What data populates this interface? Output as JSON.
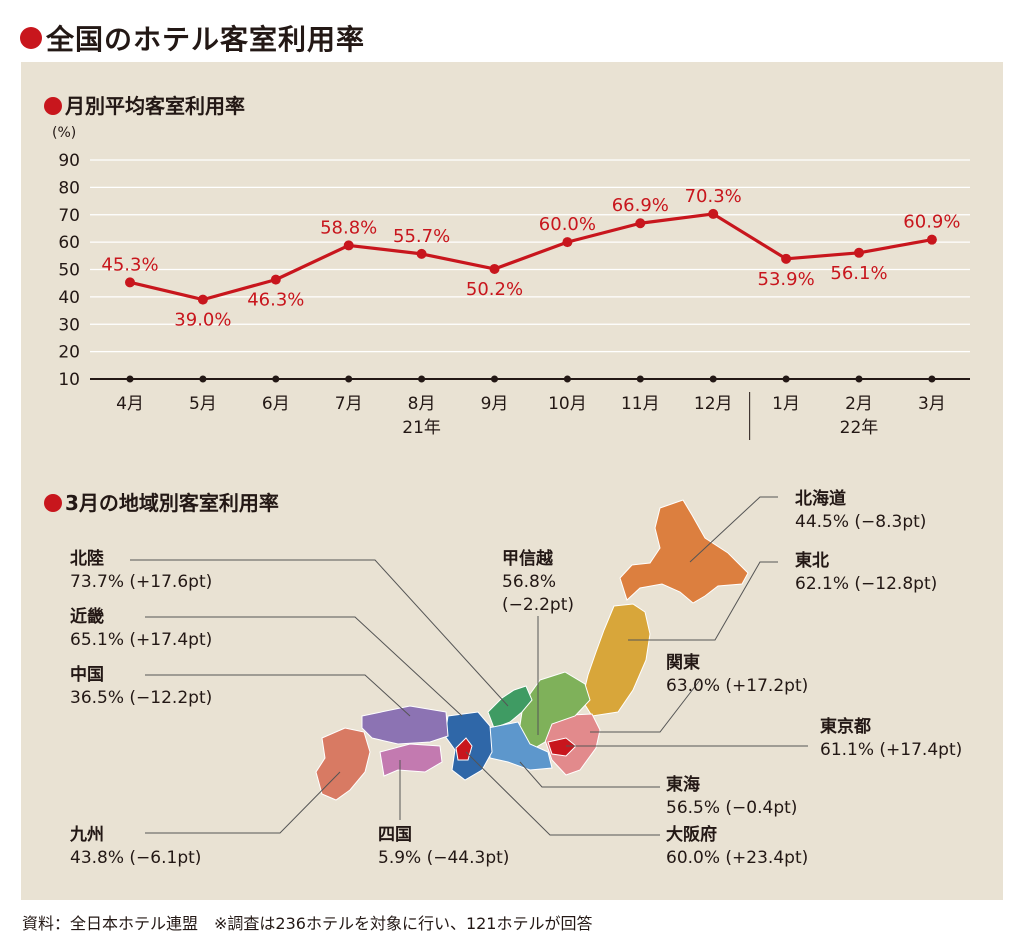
{
  "main_title": "全国のホテル客室利用率",
  "chart1": {
    "title": "月別平均客室利用率",
    "unit_label": "(%)",
    "year_labels": [
      {
        "label": "21年"
      },
      {
        "label": "22年"
      }
    ]
  },
  "chart2": {
    "title": "3月の地域別客室利用率"
  },
  "source": "資料：全日本ホテル連盟　※調査は236ホテルを対象に行い、121ホテルが回答",
  "colors": {
    "accent": "#c8161d",
    "panel": "#e9e2d3",
    "line": "#c8161d",
    "hokkaido": "#dc7f3f",
    "tohoku": "#d8a63a",
    "kanto": "#e28a8c",
    "tokyo": "#c8161d",
    "koshinetsu": "#7fb15a",
    "hokuriku": "#3f9b63",
    "tokai": "#5d97cc",
    "kinki": "#2f67a8",
    "osaka": "#c8161d",
    "chugoku": "#8c73b3",
    "shikoku": "#c37ab0",
    "kyushu": "#d87a63"
  },
  "chart_data": [
    {
      "type": "line",
      "title": "月別平均客室利用率",
      "ylabel": "(%)",
      "xlabel": "",
      "ylim": [
        10,
        90
      ],
      "yticks": [
        10,
        20,
        30,
        40,
        50,
        60,
        70,
        80,
        90
      ],
      "grid": true,
      "categories": [
        "4月",
        "5月",
        "6月",
        "7月",
        "8月",
        "9月",
        "10月",
        "11月",
        "12月",
        "1月",
        "2月",
        "3月"
      ],
      "values": [
        45.3,
        39.0,
        46.3,
        58.8,
        55.7,
        50.2,
        60.0,
        66.9,
        70.3,
        53.9,
        56.1,
        60.9
      ],
      "data_labels": [
        "45.3%",
        "39.0%",
        "46.3%",
        "58.8%",
        "55.7%",
        "50.2%",
        "60.0%",
        "66.9%",
        "70.3%",
        "53.9%",
        "56.1%",
        "60.9%"
      ],
      "label_position": [
        "above",
        "below",
        "below",
        "above",
        "above",
        "below",
        "above",
        "above",
        "above",
        "below",
        "below",
        "above"
      ],
      "year_groups": [
        {
          "label": "21年",
          "from": 0,
          "to": 8
        },
        {
          "label": "22年",
          "from": 9,
          "to": 11
        }
      ]
    },
    {
      "type": "table",
      "title": "3月の地域別客室利用率",
      "rows": [
        {
          "region": "北海道",
          "value": "44.5%",
          "change": "(−8.3pt)"
        },
        {
          "region": "東北",
          "value": "62.1%",
          "change": "(−12.8pt)"
        },
        {
          "region": "関東",
          "value": "63.0%",
          "change": "(+17.2pt)"
        },
        {
          "region": "東京都",
          "value": "61.1%",
          "change": "(+17.4pt)"
        },
        {
          "region": "東海",
          "value": "56.5%",
          "change": "(−0.4pt)"
        },
        {
          "region": "大阪府",
          "value": "60.0%",
          "change": "(+23.4pt)"
        },
        {
          "region": "四国",
          "value": "5.9%",
          "change": "(−44.3pt)"
        },
        {
          "region": "九州",
          "value": "43.8%",
          "change": "(−6.1pt)"
        },
        {
          "region": "中国",
          "value": "36.5%",
          "change": "(−12.2pt)"
        },
        {
          "region": "近畿",
          "value": "65.1%",
          "change": "(+17.4pt)"
        },
        {
          "region": "北陸",
          "value": "73.7%",
          "change": "(+17.6pt)"
        },
        {
          "region": "甲信越",
          "value": "56.8%",
          "change": "(−2.2pt)"
        }
      ]
    }
  ]
}
